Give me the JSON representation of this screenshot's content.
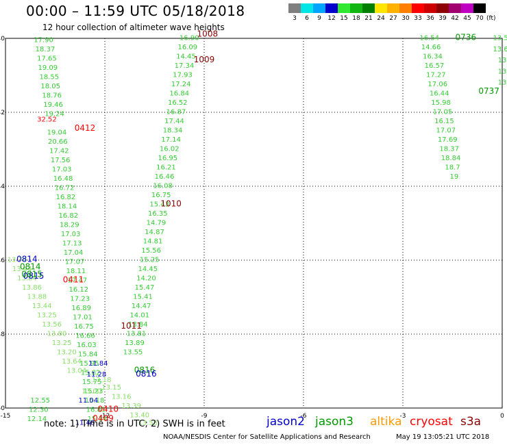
{
  "header": {
    "title": "00:00  –  11:59 UTC 05/18/2018",
    "subtitle": "12 hour collection of altimeter wave heights"
  },
  "scale": {
    "unit": "(ft)",
    "colors": [
      "#7f7f7f",
      "#00e5e5",
      "#00a5ff",
      "#0000cc",
      "#30e830",
      "#11b611",
      "#007f00",
      "#ffe600",
      "#ffb300",
      "#ff7f00",
      "#ff0000",
      "#cc0000",
      "#8c0000",
      "#a00070",
      "#c000c0",
      "#000000"
    ],
    "labels": [
      "3",
      "6",
      "9",
      "12",
      "15",
      "18",
      "21",
      "24",
      "27",
      "30",
      "33",
      "36",
      "39",
      "42",
      "45",
      "70"
    ]
  },
  "footer": {
    "note": "note:  1) Time is in UTC;  2) SWH is in feet",
    "credit": "NOAA/NESDIS Center for Satellite Applications and Research",
    "timestamp": "May 19 13:05:21 UTC 2018"
  },
  "legend": [
    {
      "name": "jason2",
      "color": "#0000cc"
    },
    {
      "name": "jason3",
      "color": "#009900"
    },
    {
      "name": "altika",
      "color": "#ff9900"
    },
    {
      "name": "cryosat",
      "color": "#ff0000"
    },
    {
      "name": "s3a",
      "color": "#880000"
    }
  ],
  "chart_data": {
    "type": "scatter",
    "title": "00:00 – 11:59 UTC 05/18/2018",
    "subtitle": "12 hour collection of altimeter wave heights",
    "x_ticks": [
      "-15",
      "-12",
      "-9",
      "-6",
      "-3",
      "0"
    ],
    "y_ticks": [
      "-40",
      "-42",
      "-44",
      "-46",
      "-48",
      "-50"
    ],
    "xlim": [
      -15,
      0
    ],
    "ylim": [
      -50,
      -40
    ],
    "grid": true,
    "values_unit": "ft",
    "series": [
      {
        "name": "jason3",
        "color": "#33cc33",
        "points": [
          {
            "lon": -13.85,
            "lat": -40.1,
            "v": "17.90"
          },
          {
            "lon": -13.8,
            "lat": -40.35,
            "v": "18.37"
          },
          {
            "lon": -13.75,
            "lat": -40.6,
            "v": "17.65"
          },
          {
            "lon": -13.72,
            "lat": -40.85,
            "v": "19.09"
          },
          {
            "lon": -13.68,
            "lat": -41.1,
            "v": "18.55"
          },
          {
            "lon": -13.64,
            "lat": -41.35,
            "v": "18.05"
          },
          {
            "lon": -13.6,
            "lat": -41.6,
            "v": "18.76"
          },
          {
            "lon": -13.56,
            "lat": -41.85,
            "v": "19.46"
          },
          {
            "lon": -13.52,
            "lat": -42.1,
            "v": "19.24"
          },
          {
            "lon": -13.45,
            "lat": -42.6,
            "v": "19.04"
          },
          {
            "lon": -13.42,
            "lat": -42.85,
            "v": "20.66"
          },
          {
            "lon": -13.38,
            "lat": -43.1,
            "v": "17.42"
          },
          {
            "lon": -13.34,
            "lat": -43.35,
            "v": "17.56"
          },
          {
            "lon": -13.3,
            "lat": -43.6,
            "v": "17.03"
          },
          {
            "lon": -13.26,
            "lat": -43.85,
            "v": "16.48"
          },
          {
            "lon": -13.22,
            "lat": -44.1,
            "v": "16.72"
          },
          {
            "lon": -13.18,
            "lat": -44.35,
            "v": "16.82"
          },
          {
            "lon": -13.14,
            "lat": -44.6,
            "v": "18.14"
          },
          {
            "lon": -13.1,
            "lat": -44.85,
            "v": "16.82"
          },
          {
            "lon": -13.07,
            "lat": -45.1,
            "v": "18.29"
          },
          {
            "lon": -13.03,
            "lat": -45.35,
            "v": "17.03"
          },
          {
            "lon": -12.99,
            "lat": -45.6,
            "v": "17.13"
          },
          {
            "lon": -12.95,
            "lat": -45.85,
            "v": "17.04"
          },
          {
            "lon": -12.91,
            "lat": -46.1,
            "v": "17.07"
          },
          {
            "lon": -12.87,
            "lat": -46.35,
            "v": "18.11"
          },
          {
            "lon": -12.83,
            "lat": -46.6,
            "v": "17.47"
          },
          {
            "lon": -12.79,
            "lat": -46.85,
            "v": "16.12"
          },
          {
            "lon": -12.75,
            "lat": -47.1,
            "v": "17.23"
          },
          {
            "lon": -12.71,
            "lat": -47.35,
            "v": "16.89"
          },
          {
            "lon": -12.67,
            "lat": -47.6,
            "v": "17.01"
          },
          {
            "lon": -12.63,
            "lat": -47.85,
            "v": "16.75"
          },
          {
            "lon": -12.59,
            "lat": -48.1,
            "v": "16.66"
          },
          {
            "lon": -12.55,
            "lat": -48.35,
            "v": "16.03"
          },
          {
            "lon": -12.51,
            "lat": -48.6,
            "v": "15.84"
          },
          {
            "lon": -12.47,
            "lat": -48.85,
            "v": "15.95"
          },
          {
            "lon": -12.43,
            "lat": -49.1,
            "v": "15.82"
          },
          {
            "lon": -12.39,
            "lat": -49.35,
            "v": "15.75"
          },
          {
            "lon": -12.35,
            "lat": -49.6,
            "v": "15.23"
          },
          {
            "lon": -12.31,
            "lat": -49.85,
            "v": "15.18"
          },
          {
            "lon": -12.27,
            "lat": -50.1,
            "v": "16.81"
          },
          {
            "lon": -12.23,
            "lat": -50.35,
            "v": "15.14"
          },
          {
            "lon": -14.05,
            "lat": -50.35,
            "v": "12.14"
          },
          {
            "lon": -14.0,
            "lat": -50.1,
            "v": "12.30"
          },
          {
            "lon": -13.95,
            "lat": -49.85,
            "v": "12.55"
          },
          {
            "lon": -9.45,
            "lat": -40.05,
            "v": "16.90"
          },
          {
            "lon": -9.5,
            "lat": -40.3,
            "v": "16.09"
          },
          {
            "lon": -9.55,
            "lat": -40.55,
            "v": "14.45"
          },
          {
            "lon": -9.6,
            "lat": -40.8,
            "v": "17.34"
          },
          {
            "lon": -9.65,
            "lat": -41.05,
            "v": "17.93"
          },
          {
            "lon": -9.7,
            "lat": -41.3,
            "v": "17.24"
          },
          {
            "lon": -9.75,
            "lat": -41.55,
            "v": "16.84"
          },
          {
            "lon": -9.8,
            "lat": -41.8,
            "v": "16.52"
          },
          {
            "lon": -9.85,
            "lat": -42.05,
            "v": "16.87"
          },
          {
            "lon": -9.9,
            "lat": -42.3,
            "v": "17.44"
          },
          {
            "lon": -9.95,
            "lat": -42.55,
            "v": "18.34"
          },
          {
            "lon": -10.0,
            "lat": -42.8,
            "v": "17.14"
          },
          {
            "lon": -10.05,
            "lat": -43.05,
            "v": "16.02"
          },
          {
            "lon": -10.1,
            "lat": -43.3,
            "v": "16.95"
          },
          {
            "lon": -10.15,
            "lat": -43.55,
            "v": "16.21"
          },
          {
            "lon": -10.2,
            "lat": -43.8,
            "v": "16.46"
          },
          {
            "lon": -10.25,
            "lat": -44.05,
            "v": "16.08"
          },
          {
            "lon": -10.3,
            "lat": -44.3,
            "v": "16.75"
          },
          {
            "lon": -10.35,
            "lat": -44.55,
            "v": "15.43"
          },
          {
            "lon": -10.4,
            "lat": -44.8,
            "v": "16.35"
          },
          {
            "lon": -10.45,
            "lat": -45.05,
            "v": "14.79"
          },
          {
            "lon": -10.5,
            "lat": -45.3,
            "v": "14.87"
          },
          {
            "lon": -10.55,
            "lat": -45.55,
            "v": "14.81"
          },
          {
            "lon": -10.6,
            "lat": -45.8,
            "v": "15.56"
          },
          {
            "lon": -10.65,
            "lat": -46.05,
            "v": "15.25"
          },
          {
            "lon": -10.7,
            "lat": -46.3,
            "v": "14.45"
          },
          {
            "lon": -10.75,
            "lat": -46.55,
            "v": "14.20"
          },
          {
            "lon": -10.8,
            "lat": -46.8,
            "v": "15.47"
          },
          {
            "lon": -10.85,
            "lat": -47.05,
            "v": "15.41"
          },
          {
            "lon": -10.9,
            "lat": -47.3,
            "v": "14.47"
          },
          {
            "lon": -10.95,
            "lat": -47.55,
            "v": "14.01"
          },
          {
            "lon": -11.0,
            "lat": -47.8,
            "v": "13.84"
          },
          {
            "lon": -11.05,
            "lat": -48.05,
            "v": "13.81"
          },
          {
            "lon": -11.1,
            "lat": -48.3,
            "v": "13.89"
          },
          {
            "lon": -11.15,
            "lat": -48.55,
            "v": "13.55"
          },
          {
            "lon": -2.2,
            "lat": -40.05,
            "v": "16.54"
          },
          {
            "lon": -2.15,
            "lat": -40.3,
            "v": "14.66"
          },
          {
            "lon": -2.1,
            "lat": -40.55,
            "v": "16.34"
          },
          {
            "lon": -2.05,
            "lat": -40.8,
            "v": "16.57"
          },
          {
            "lon": -2.0,
            "lat": -41.05,
            "v": "17.27"
          },
          {
            "lon": -1.95,
            "lat": -41.3,
            "v": "17.06"
          },
          {
            "lon": -1.9,
            "lat": -41.55,
            "v": "16.44"
          },
          {
            "lon": -1.85,
            "lat": -41.8,
            "v": "15.98"
          },
          {
            "lon": -1.8,
            "lat": -42.05,
            "v": "17.05"
          },
          {
            "lon": -1.75,
            "lat": -42.3,
            "v": "16.15"
          },
          {
            "lon": -1.7,
            "lat": -42.55,
            "v": "17.07"
          },
          {
            "lon": -1.65,
            "lat": -42.8,
            "v": "17.69"
          },
          {
            "lon": -1.6,
            "lat": -43.05,
            "v": "18.37"
          },
          {
            "lon": -1.55,
            "lat": -43.3,
            "v": "18.84"
          },
          {
            "lon": -1.5,
            "lat": -43.55,
            "v": "18.7"
          },
          {
            "lon": -1.45,
            "lat": -43.8,
            "v": "19"
          },
          {
            "lon": -0.05,
            "lat": -40.05,
            "v": "13.5"
          },
          {
            "lon": -0.05,
            "lat": -40.35,
            "v": "13.6"
          },
          {
            "lon": 0.0,
            "lat": -40.65,
            "v": "13"
          },
          {
            "lon": 0.0,
            "lat": -40.95,
            "v": "13"
          },
          {
            "lon": 0.0,
            "lat": -41.25,
            "v": "13"
          }
        ]
      },
      {
        "name": "jason3-diagonal",
        "color": "#88dd66",
        "points": [
          {
            "lon": -14.65,
            "lat": -46.05,
            "v": "13.74"
          },
          {
            "lon": -14.5,
            "lat": -46.3,
            "v": "13.44"
          },
          {
            "lon": -14.35,
            "lat": -46.55,
            "v": "13.84"
          },
          {
            "lon": -14.2,
            "lat": -46.8,
            "v": "13.86"
          },
          {
            "lon": -14.05,
            "lat": -47.05,
            "v": "13.88"
          },
          {
            "lon": -13.9,
            "lat": -47.3,
            "v": "13.44"
          },
          {
            "lon": -13.75,
            "lat": -47.55,
            "v": "13.25"
          },
          {
            "lon": -13.6,
            "lat": -47.8,
            "v": "13.56"
          },
          {
            "lon": -13.45,
            "lat": -48.05,
            "v": "13.80"
          },
          {
            "lon": -13.3,
            "lat": -48.3,
            "v": "13.25"
          },
          {
            "lon": -13.15,
            "lat": -48.55,
            "v": "13.20"
          },
          {
            "lon": -13.0,
            "lat": -48.8,
            "v": "13.64"
          },
          {
            "lon": -12.85,
            "lat": -49.05,
            "v": "13.04"
          },
          {
            "lon": -12.4,
            "lat": -49.6,
            "v": "13.00"
          },
          {
            "lon": -12.1,
            "lat": -49.3,
            "v": "13.18"
          },
          {
            "lon": -11.8,
            "lat": -49.5,
            "v": "13.15"
          },
          {
            "lon": -11.5,
            "lat": -49.75,
            "v": "13.16"
          },
          {
            "lon": -11.2,
            "lat": -50.0,
            "v": "13.39"
          },
          {
            "lon": -10.95,
            "lat": -50.25,
            "v": "13.40"
          },
          {
            "lon": -10.7,
            "lat": -50.45,
            "v": "13.58"
          }
        ]
      },
      {
        "name": "jason2",
        "color": "#0000cc",
        "points": [
          {
            "lon": -12.2,
            "lat": -48.85,
            "v": "11.84"
          },
          {
            "lon": -12.25,
            "lat": -49.15,
            "v": "11.28"
          },
          {
            "lon": -12.5,
            "lat": -49.85,
            "v": "11.04"
          },
          {
            "lon": -12.6,
            "lat": -50.45,
            "v": "11.48"
          }
        ]
      },
      {
        "name": "cryosat",
        "color": "#ff0000",
        "points": [
          {
            "lon": -13.75,
            "lat": -42.25,
            "v": "32.52"
          }
        ]
      }
    ],
    "time_labels": [
      {
        "t": "1008",
        "lon": -8.9,
        "lat": -39.95,
        "color": "#880000"
      },
      {
        "t": "1009",
        "lon": -9.0,
        "lat": -40.65,
        "color": "#880000"
      },
      {
        "t": "1010",
        "lon": -10.0,
        "lat": -44.55,
        "color": "#880000"
      },
      {
        "t": "1011",
        "lon": -11.2,
        "lat": -47.85,
        "color": "#880000"
      },
      {
        "t": "0412",
        "lon": -12.6,
        "lat": -42.5,
        "color": "#ff0000"
      },
      {
        "t": "0411",
        "lon": -12.95,
        "lat": -46.6,
        "color": "#ff0000"
      },
      {
        "t": "0410",
        "lon": -11.9,
        "lat": -50.1,
        "color": "#ff0000"
      },
      {
        "t": "0409",
        "lon": -12.05,
        "lat": -50.35,
        "color": "#ff0000"
      },
      {
        "t": "0814",
        "lon": -14.35,
        "lat": -46.05,
        "color": "#0000cc"
      },
      {
        "t": "0814",
        "lon": -14.25,
        "lat": -46.25,
        "color": "#009900"
      },
      {
        "t": "0815",
        "lon": -14.15,
        "lat": -46.5,
        "color": "#0000cc"
      },
      {
        "t": "0815",
        "lon": -14.2,
        "lat": -46.45,
        "color": "#009900"
      },
      {
        "t": "0816",
        "lon": -10.8,
        "lat": -49.05,
        "color": "#009900"
      },
      {
        "t": "0816",
        "lon": -10.75,
        "lat": -49.15,
        "color": "#0000cc"
      },
      {
        "t": "0736",
        "lon": -1.1,
        "lat": -40.05,
        "color": "#009900"
      },
      {
        "t": "0737",
        "lon": -0.4,
        "lat": -41.5,
        "color": "#009900"
      }
    ]
  }
}
